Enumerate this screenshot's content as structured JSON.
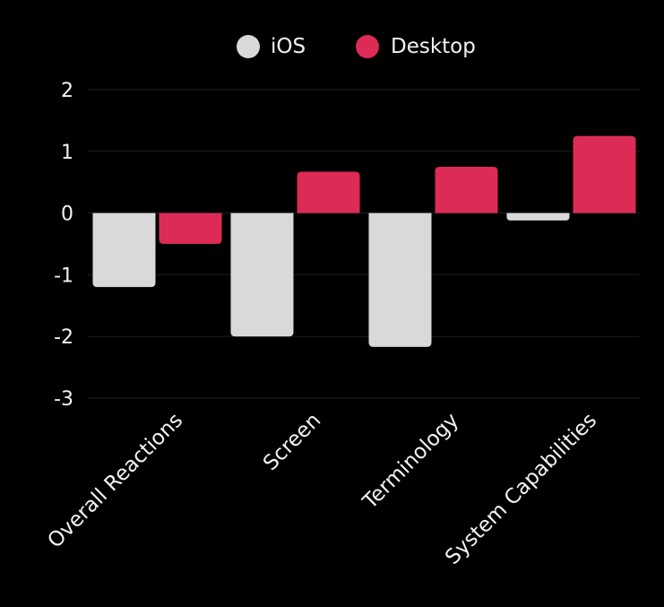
{
  "chart_data": {
    "type": "bar",
    "title": "",
    "xlabel": "",
    "ylabel": "",
    "ylim": [
      -3,
      2
    ],
    "yticks": [
      2,
      1,
      0,
      -1,
      -2,
      -3
    ],
    "ytick_labels": [
      "2",
      "1",
      "0",
      "-1",
      "-2",
      "-3"
    ],
    "grid": true,
    "legend_position": "top-center",
    "categories": [
      "Overall Reactions",
      "Screen",
      "Terminology",
      "System Capabilities"
    ],
    "series": [
      {
        "name": "iOS",
        "color": "#d9d9d9",
        "values": [
          -1.2,
          -2.0,
          -2.17,
          -0.12
        ]
      },
      {
        "name": "Desktop",
        "color": "#dc2b55",
        "values": [
          -0.5,
          0.67,
          0.75,
          1.25
        ]
      }
    ]
  },
  "colors": {
    "background": "#000000",
    "text": "#f2f2f2",
    "grid": "#1e1e1e"
  }
}
